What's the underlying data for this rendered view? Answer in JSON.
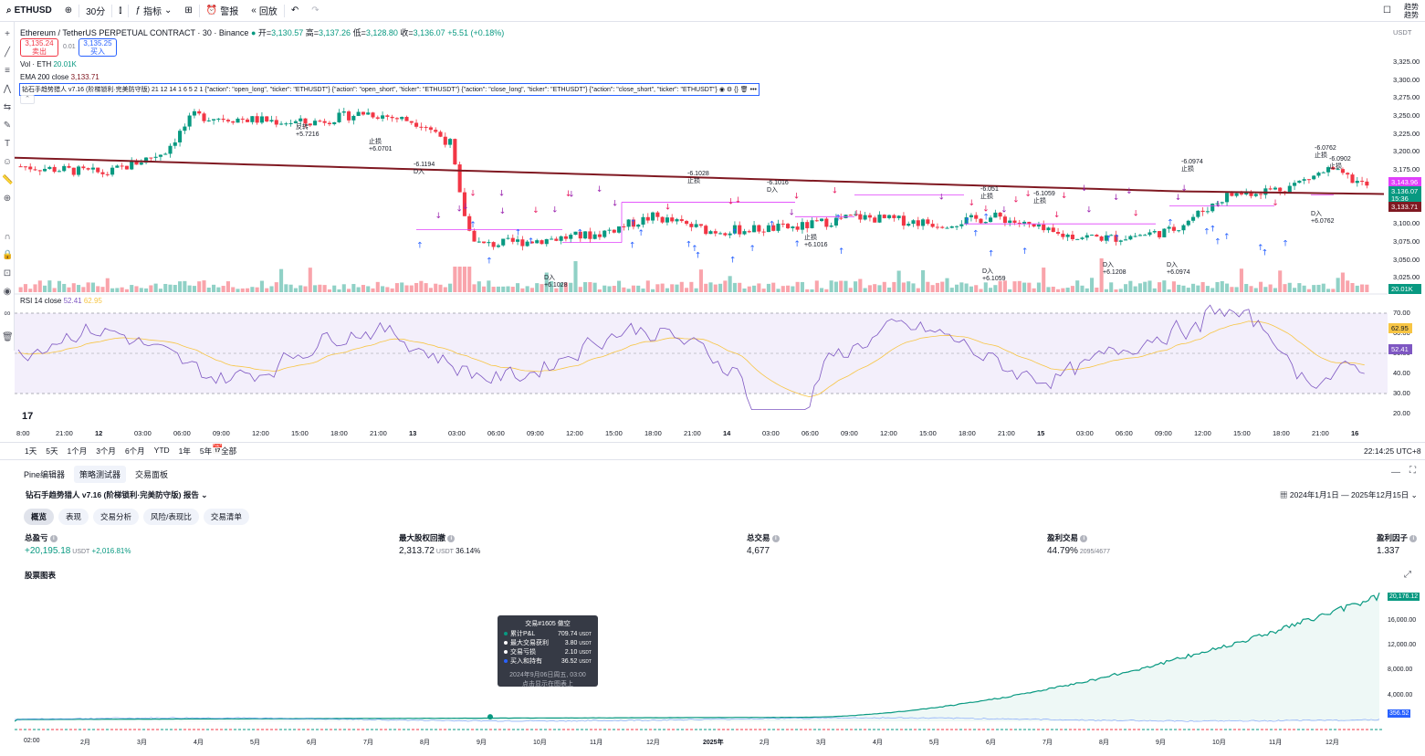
{
  "toolbar": {
    "symbol": "ETHUSD",
    "interval": "30分",
    "indicators": "指标",
    "alert": "警报",
    "replay": "回放",
    "right_label": "趋势",
    "right_label2": "趋势"
  },
  "legend": {
    "title": "Ethereum / TetherUS PERPETUAL CONTRACT · 30 · Binance",
    "open_label": "开=",
    "open": "3,130.57",
    "high_label": "高=",
    "high": "3,137.26",
    "low_label": "低=",
    "low": "3,128.80",
    "close_label": "收=",
    "close": "3,136.07",
    "change": "+5.51 (+0.18%)",
    "sell_price": "3,135.24",
    "sell_label": "卖出",
    "spread": "0.01",
    "buy_price": "3,135.25",
    "buy_label": "买入",
    "vol_label": "Vol · ETH",
    "vol_value": "20.01K",
    "ema_label": "EMA 200 close",
    "ema_value": "3,133.71",
    "strategy_line": "钻石手趋势猎人 v7.16 (阶梯锁利·完美防守版) 21 12 14 1 6 5 2 1 {\"action\": \"open_long\", \"ticker\": \"ETHUSDT\"} {\"action\": \"open_short\", \"ticker\": \"ETHUSDT\"} {\"action\": \"close_long\", \"ticker\": \"ETHUSDT\"} {\"action\": \"close_short\", \"ticker\": \"ETHUSDT\"}",
    "rsi_label": "RSI 14 close",
    "rsi_value": "52.41",
    "rsi_ma": "62.95"
  },
  "price_axis": {
    "currency": "USDT",
    "ticks": [
      "3,325.00",
      "3,300.00",
      "3,275.00",
      "3,250.00",
      "3,225.00",
      "3,200.00",
      "3,175.00",
      "3,150.00",
      "3,125.00",
      "3,100.00",
      "3,075.00",
      "3,050.00",
      "3,025.00"
    ],
    "tag_price": "3,143.96",
    "tag_close": "3,136.07",
    "tag_time": "15:36",
    "tag_ema": "3,133.71",
    "tag_vol": "20.01K"
  },
  "rsi_axis": {
    "ticks": [
      "70.00",
      "60.00",
      "50.00",
      "40.00",
      "30.00",
      "20.00"
    ],
    "tag_ma": "62.95",
    "tag_rsi": "52.41"
  },
  "time_axis": {
    "ticks": [
      "8:00",
      "21:00",
      "12",
      "03:00",
      "06:00",
      "09:00",
      "12:00",
      "15:00",
      "18:00",
      "21:00",
      "13",
      "03:00",
      "06:00",
      "09:00",
      "12:00",
      "15:00",
      "18:00",
      "21:00",
      "14",
      "03:00",
      "06:00",
      "09:00",
      "12:00",
      "15:00",
      "18:00",
      "21:00",
      "15",
      "03:00",
      "06:00",
      "09:00",
      "12:00",
      "15:00",
      "18:00",
      "21:00",
      "16"
    ],
    "clock": "22:14:25 UTC+8"
  },
  "ranges": [
    "1天",
    "5天",
    "1个月",
    "3个月",
    "6个月",
    "YTD",
    "1年",
    "5年",
    "全部"
  ],
  "trade_labels": [
    {
      "text": "反转",
      "sub": "+5.7216"
    },
    {
      "text": "止损",
      "sub": "+6.0701"
    },
    {
      "text": "-6.1194",
      "sub": "D入"
    },
    {
      "text": "-6.1028",
      "sub": "止损"
    },
    {
      "text": "-6.1016",
      "sub": "D入"
    },
    {
      "text": "-6.051",
      "sub": "止损"
    },
    {
      "text": "-6.1059",
      "sub": "止损"
    },
    {
      "text": "-6.0974",
      "sub": "止损"
    },
    {
      "text": "-6.0762",
      "sub": "止损"
    },
    {
      "text": "-6.0902",
      "sub": "止损"
    },
    {
      "text": "D入",
      "sub": "+6.1028"
    },
    {
      "text": "止损",
      "sub": "+6.1016"
    },
    {
      "text": "D入",
      "sub": "+6.1059"
    },
    {
      "text": "D入",
      "sub": "+6.1208"
    },
    {
      "text": "D入",
      "sub": "+6.0974"
    },
    {
      "text": "D入",
      "sub": "+6.0762"
    }
  ],
  "panel_tabs": [
    "Pine编辑器",
    "策略测试器",
    "交易面板"
  ],
  "report": {
    "title": "钻石手趋势猎人 v7.16 (阶梯锁利·完美防守版) 报告",
    "date_range": "2024年1月1日 — 2025年12月15日",
    "tabs": [
      "概览",
      "表现",
      "交易分析",
      "风险/表现比",
      "交易清单"
    ],
    "metrics": [
      {
        "label": "总盈亏",
        "value": "+20,195.18",
        "unit": "USDT",
        "extra": "+2,016.81%"
      },
      {
        "label": "最大股权回撤",
        "value": "2,313.72",
        "unit": "USDT",
        "extra": "36.14%"
      },
      {
        "label": "总交易",
        "value": "4,677",
        "unit": "",
        "extra": ""
      },
      {
        "label": "盈利交易",
        "value": "44.79%",
        "unit": "",
        "extra": "2095/4677"
      },
      {
        "label": "盈利因子",
        "value": "1.337",
        "unit": "",
        "extra": ""
      }
    ],
    "equity_title": "股票图表"
  },
  "equity_axis": {
    "ticks": [
      "16,000.00",
      "12,000.00",
      "8,000.00",
      "4,000.00"
    ],
    "tag_equity": "20,176.12",
    "tag_bh": "356.52",
    "months": [
      "02:00",
      "2月",
      "3月",
      "4月",
      "5月",
      "6月",
      "7月",
      "8月",
      "9月",
      "10月",
      "11月",
      "12月",
      "2025年",
      "2月",
      "3月",
      "4月",
      "5月",
      "6月",
      "7月",
      "8月",
      "9月",
      "10月",
      "11月",
      "12月"
    ]
  },
  "tooltip": {
    "title": "交易#1605 做空",
    "rows": [
      {
        "label": "累计P&L",
        "value": "709.74",
        "unit": "USDT",
        "color": "#089981"
      },
      {
        "label": "最大交易获利",
        "value": "3.80",
        "unit": "USDT",
        "color": "#ffffff"
      },
      {
        "label": "交易亏损",
        "value": "2.10",
        "unit": "USDT",
        "color": "#ffffff"
      },
      {
        "label": "买入和持有",
        "value": "36.52",
        "unit": "USDT",
        "color": "#2962ff"
      }
    ],
    "date": "2024年9月06日周五, 03:00",
    "hint": "点击显示在图表上"
  },
  "colors": {
    "up": "#089981",
    "down": "#f23645",
    "ema": "#801922",
    "rsi": "#7e57c2",
    "equity": "#089981"
  }
}
